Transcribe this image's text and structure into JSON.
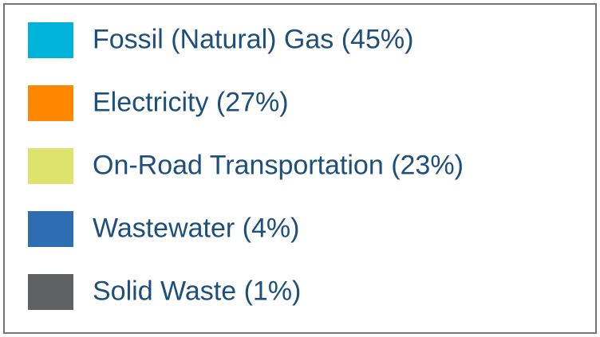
{
  "legend": {
    "items": [
      {
        "label": "Fossil (Natural) Gas (45%)",
        "color": "#00b3da"
      },
      {
        "label": "Electricity (27%)",
        "color": "#ff8800"
      },
      {
        "label": "On-Road Transportation (23%)",
        "color": "#dde36c"
      },
      {
        "label": "Wastewater (4%)",
        "color": "#2f6db3"
      },
      {
        "label": "Solid Waste (1%)",
        "color": "#5f6062"
      }
    ]
  }
}
